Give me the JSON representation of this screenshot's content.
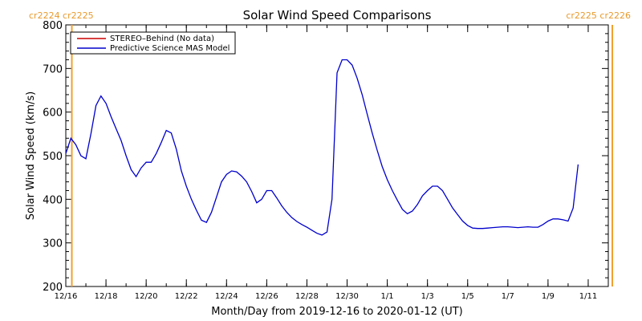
{
  "colors": {
    "model": "#0000cc",
    "stereo": "#cc0000",
    "boundary": "#f0a030",
    "axis": "#000000"
  },
  "carrington": {
    "left_label": "cr2224 cr2225",
    "right_label": "cr2225 cr2226",
    "left_boundary_day": 0.3,
    "right_boundary_day": 27.2
  },
  "chart_data": {
    "type": "line",
    "title": "Solar Wind Speed Comparisons",
    "xlabel": "Month/Day from 2019-12-16 to 2020-01-12 (UT)",
    "ylabel": "Solar Wind Speed (km/s)",
    "xlim": [
      "2019-12-16",
      "2020-01-12"
    ],
    "ylim": [
      200,
      800
    ],
    "y_ticks": [
      200,
      300,
      400,
      500,
      600,
      700,
      800
    ],
    "x_ticks": [
      {
        "date": "2019-12-16",
        "label": "12/16"
      },
      {
        "date": "2019-12-18",
        "label": "12/18"
      },
      {
        "date": "2019-12-20",
        "label": "12/20"
      },
      {
        "date": "2019-12-22",
        "label": "12/22"
      },
      {
        "date": "2019-12-24",
        "label": "12/24"
      },
      {
        "date": "2019-12-26",
        "label": "12/26"
      },
      {
        "date": "2019-12-28",
        "label": "12/28"
      },
      {
        "date": "2019-12-30",
        "label": "12/30"
      },
      {
        "date": "2020-01-01",
        "label": "1/1"
      },
      {
        "date": "2020-01-03",
        "label": "1/3"
      },
      {
        "date": "2020-01-05",
        "label": "1/5"
      },
      {
        "date": "2020-01-07",
        "label": "1/7"
      },
      {
        "date": "2020-01-09",
        "label": "1/9"
      },
      {
        "date": "2020-01-11",
        "label": "1/11"
      }
    ],
    "legend_position": "top-left",
    "series": [
      {
        "name": "STEREO–Behind (No data)",
        "values": []
      },
      {
        "name": "Predictive Science MAS Model",
        "points": [
          [
            "2019-12-16 00:00",
            505
          ],
          [
            "2019-12-16 06:00",
            540
          ],
          [
            "2019-12-16 12:00",
            525
          ],
          [
            "2019-12-16 18:00",
            500
          ],
          [
            "2019-12-17 00:00",
            493
          ],
          [
            "2019-12-17 06:00",
            550
          ],
          [
            "2019-12-17 12:00",
            615
          ],
          [
            "2019-12-17 18:00",
            637
          ],
          [
            "2019-12-18 00:00",
            620
          ],
          [
            "2019-12-18 06:00",
            590
          ],
          [
            "2019-12-18 12:00",
            562
          ],
          [
            "2019-12-18 18:00",
            535
          ],
          [
            "2019-12-19 00:00",
            500
          ],
          [
            "2019-12-19 06:00",
            468
          ],
          [
            "2019-12-19 12:00",
            452
          ],
          [
            "2019-12-19 18:00",
            472
          ],
          [
            "2019-12-20 00:00",
            485
          ],
          [
            "2019-12-20 06:00",
            485
          ],
          [
            "2019-12-20 12:00",
            505
          ],
          [
            "2019-12-20 18:00",
            530
          ],
          [
            "2019-12-21 00:00",
            558
          ],
          [
            "2019-12-21 06:00",
            552
          ],
          [
            "2019-12-21 12:00",
            515
          ],
          [
            "2019-12-21 18:00",
            465
          ],
          [
            "2019-12-22 00:00",
            430
          ],
          [
            "2019-12-22 06:00",
            400
          ],
          [
            "2019-12-22 12:00",
            375
          ],
          [
            "2019-12-22 18:00",
            352
          ],
          [
            "2019-12-23 00:00",
            347
          ],
          [
            "2019-12-23 06:00",
            370
          ],
          [
            "2019-12-23 12:00",
            405
          ],
          [
            "2019-12-23 18:00",
            440
          ],
          [
            "2019-12-24 00:00",
            457
          ],
          [
            "2019-12-24 06:00",
            465
          ],
          [
            "2019-12-24 12:00",
            463
          ],
          [
            "2019-12-24 18:00",
            453
          ],
          [
            "2019-12-25 00:00",
            440
          ],
          [
            "2019-12-25 06:00",
            418
          ],
          [
            "2019-12-25 12:00",
            392
          ],
          [
            "2019-12-25 18:00",
            400
          ],
          [
            "2019-12-26 00:00",
            420
          ],
          [
            "2019-12-26 06:00",
            420
          ],
          [
            "2019-12-26 12:00",
            403
          ],
          [
            "2019-12-26 18:00",
            385
          ],
          [
            "2019-12-27 00:00",
            370
          ],
          [
            "2019-12-27 06:00",
            358
          ],
          [
            "2019-12-27 12:00",
            349
          ],
          [
            "2019-12-27 18:00",
            342
          ],
          [
            "2019-12-28 00:00",
            336
          ],
          [
            "2019-12-28 06:00",
            329
          ],
          [
            "2019-12-28 12:00",
            322
          ],
          [
            "2019-12-28 18:00",
            318
          ],
          [
            "2019-12-29 00:00",
            325
          ],
          [
            "2019-12-29 06:00",
            400
          ],
          [
            "2019-12-29 12:00",
            690
          ],
          [
            "2019-12-29 18:00",
            720
          ],
          [
            "2019-12-30 00:00",
            720
          ],
          [
            "2019-12-30 06:00",
            708
          ],
          [
            "2019-12-30 12:00",
            678
          ],
          [
            "2019-12-30 18:00",
            640
          ],
          [
            "2019-12-31 00:00",
            595
          ],
          [
            "2019-12-31 06:00",
            552
          ],
          [
            "2019-12-31 12:00",
            512
          ],
          [
            "2019-12-31 18:00",
            475
          ],
          [
            "2020-01-01 00:00",
            445
          ],
          [
            "2020-01-01 06:00",
            420
          ],
          [
            "2020-01-01 12:00",
            398
          ],
          [
            "2020-01-01 18:00",
            377
          ],
          [
            "2020-01-02 00:00",
            367
          ],
          [
            "2020-01-02 06:00",
            373
          ],
          [
            "2020-01-02 12:00",
            388
          ],
          [
            "2020-01-02 18:00",
            408
          ],
          [
            "2020-01-03 00:00",
            420
          ],
          [
            "2020-01-03 06:00",
            430
          ],
          [
            "2020-01-03 12:00",
            430
          ],
          [
            "2020-01-03 18:00",
            420
          ],
          [
            "2020-01-04 00:00",
            400
          ],
          [
            "2020-01-04 06:00",
            380
          ],
          [
            "2020-01-04 12:00",
            365
          ],
          [
            "2020-01-04 18:00",
            350
          ],
          [
            "2020-01-05 00:00",
            340
          ],
          [
            "2020-01-05 06:00",
            334
          ],
          [
            "2020-01-05 12:00",
            333
          ],
          [
            "2020-01-05 18:00",
            333
          ],
          [
            "2020-01-06 00:00",
            334
          ],
          [
            "2020-01-06 06:00",
            335
          ],
          [
            "2020-01-06 12:00",
            336
          ],
          [
            "2020-01-06 18:00",
            337
          ],
          [
            "2020-01-07 00:00",
            337
          ],
          [
            "2020-01-07 06:00",
            336
          ],
          [
            "2020-01-07 12:00",
            335
          ],
          [
            "2020-01-07 18:00",
            336
          ],
          [
            "2020-01-08 00:00",
            337
          ],
          [
            "2020-01-08 06:00",
            336
          ],
          [
            "2020-01-08 12:00",
            336
          ],
          [
            "2020-01-08 18:00",
            342
          ],
          [
            "2020-01-09 00:00",
            350
          ],
          [
            "2020-01-09 06:00",
            355
          ],
          [
            "2020-01-09 12:00",
            355
          ],
          [
            "2020-01-09 18:00",
            353
          ],
          [
            "2020-01-10 00:00",
            350
          ],
          [
            "2020-01-10 06:00",
            380
          ],
          [
            "2020-01-10 12:00",
            480
          ]
        ]
      }
    ]
  }
}
